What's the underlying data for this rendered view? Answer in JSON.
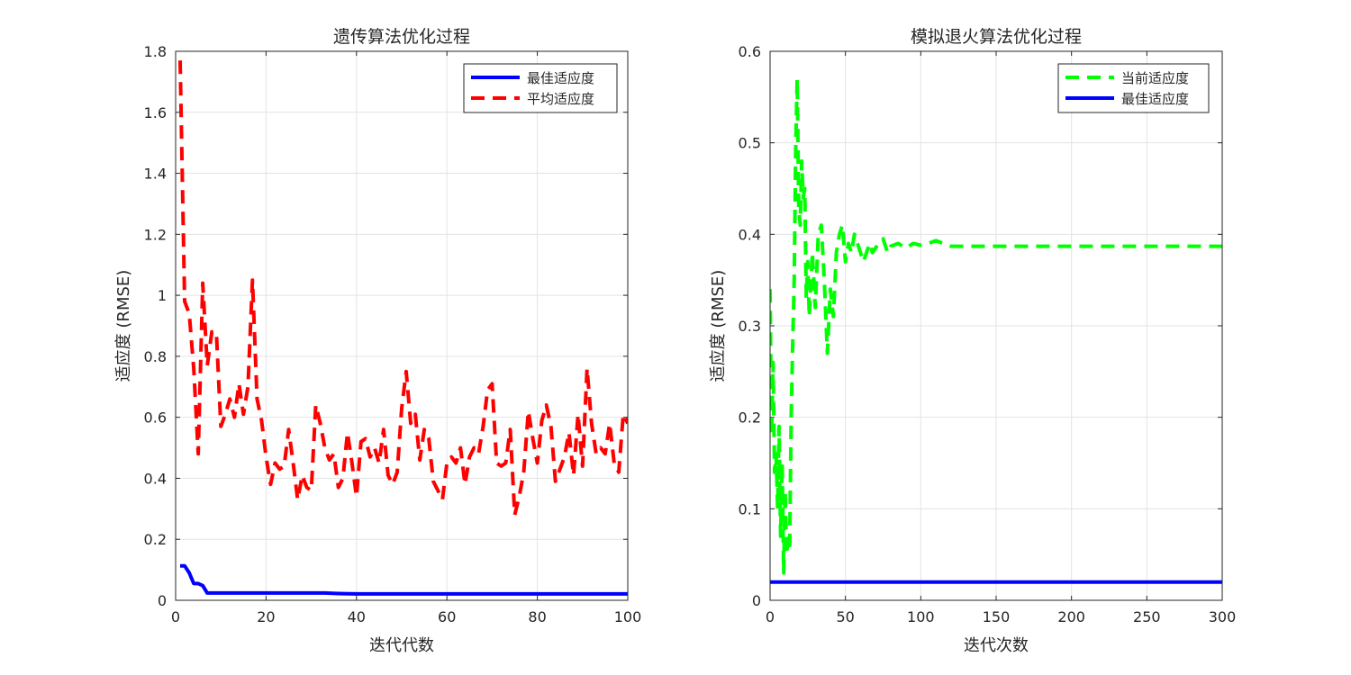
{
  "chart_data": [
    {
      "type": "line",
      "title": "遗传算法优化过程",
      "xlabel": "迭代代数",
      "ylabel": "适应度 (RMSE)",
      "xlim": [
        0,
        100
      ],
      "ylim": [
        0,
        1.8
      ],
      "xticks": [
        "0",
        "20",
        "40",
        "60",
        "80",
        "100"
      ],
      "yticks": [
        "0",
        "0.2",
        "0.4",
        "0.6",
        "0.8",
        "1",
        "1.2",
        "1.4",
        "1.6",
        "1.8"
      ],
      "grid": true,
      "legend_position": "top-right",
      "series": [
        {
          "name": "最佳适应度",
          "color": "#0000ff",
          "style": "solid",
          "x": [
            1,
            2,
            3,
            4,
            5,
            6,
            7,
            8,
            10,
            20,
            30,
            33,
            36,
            40,
            50,
            60,
            70,
            80,
            90,
            100
          ],
          "y": [
            0.113,
            0.113,
            0.09,
            0.055,
            0.055,
            0.048,
            0.024,
            0.024,
            0.024,
            0.024,
            0.024,
            0.024,
            0.022,
            0.021,
            0.021,
            0.021,
            0.021,
            0.021,
            0.021,
            0.021
          ]
        },
        {
          "name": "平均适应度",
          "color": "#ff0000",
          "style": "dashed",
          "x": [
            1,
            2,
            3,
            4,
            5,
            6,
            7,
            8,
            9,
            10,
            11,
            12,
            13,
            14,
            15,
            16,
            17,
            18,
            19,
            20,
            21,
            22,
            23,
            24,
            25,
            26,
            27,
            28,
            29,
            30,
            31,
            32,
            33,
            34,
            35,
            36,
            37,
            38,
            39,
            40,
            41,
            42,
            43,
            44,
            45,
            46,
            47,
            48,
            49,
            50,
            51,
            52,
            53,
            54,
            55,
            56,
            57,
            58,
            59,
            60,
            61,
            62,
            63,
            64,
            65,
            66,
            67,
            68,
            69,
            70,
            71,
            72,
            73,
            74,
            75,
            76,
            77,
            78,
            79,
            80,
            81,
            82,
            83,
            84,
            85,
            86,
            87,
            88,
            89,
            90,
            91,
            92,
            93,
            94,
            95,
            96,
            97,
            98,
            99,
            100
          ],
          "y": [
            1.77,
            0.98,
            0.94,
            0.76,
            0.48,
            1.04,
            0.77,
            0.88,
            0.88,
            0.57,
            0.61,
            0.66,
            0.6,
            0.71,
            0.61,
            0.7,
            1.05,
            0.66,
            0.59,
            0.47,
            0.38,
            0.45,
            0.43,
            0.44,
            0.56,
            0.45,
            0.33,
            0.41,
            0.37,
            0.36,
            0.64,
            0.58,
            0.5,
            0.46,
            0.48,
            0.37,
            0.4,
            0.55,
            0.45,
            0.34,
            0.52,
            0.53,
            0.47,
            0.5,
            0.45,
            0.56,
            0.41,
            0.38,
            0.42,
            0.63,
            0.75,
            0.58,
            0.61,
            0.46,
            0.56,
            0.53,
            0.39,
            0.36,
            0.33,
            0.45,
            0.47,
            0.45,
            0.5,
            0.38,
            0.47,
            0.5,
            0.48,
            0.57,
            0.69,
            0.71,
            0.45,
            0.44,
            0.45,
            0.56,
            0.28,
            0.34,
            0.42,
            0.62,
            0.53,
            0.45,
            0.59,
            0.64,
            0.57,
            0.39,
            0.43,
            0.47,
            0.55,
            0.41,
            0.61,
            0.44,
            0.76,
            0.58,
            0.48,
            0.5,
            0.48,
            0.58,
            0.45,
            0.42,
            0.61,
            0.58
          ]
        }
      ]
    },
    {
      "type": "line",
      "title": "模拟退火算法优化过程",
      "xlabel": "迭代次数",
      "ylabel": "适应度 (RMSE)",
      "xlim": [
        0,
        300
      ],
      "ylim": [
        0,
        0.6
      ],
      "xticks": [
        "0",
        "50",
        "100",
        "150",
        "200",
        "250",
        "300"
      ],
      "yticks": [
        "0",
        "0.1",
        "0.2",
        "0.3",
        "0.4",
        "0.5",
        "0.6"
      ],
      "grid": true,
      "legend_position": "top-right",
      "series": [
        {
          "name": "当前适应度",
          "color": "#00ff00",
          "style": "dashed",
          "x": [
            0,
            1,
            2,
            3,
            4,
            5,
            6,
            7,
            8,
            9,
            10,
            11,
            12,
            13,
            14,
            15,
            16,
            17,
            18,
            19,
            20,
            21,
            22,
            23,
            24,
            25,
            26,
            28,
            30,
            32,
            34,
            36,
            38,
            40,
            42,
            44,
            46,
            48,
            50,
            52,
            54,
            56,
            58,
            60,
            62,
            64,
            66,
            68,
            70,
            72,
            75,
            78,
            80,
            85,
            90,
            95,
            100,
            105,
            110,
            115,
            120,
            125,
            130,
            150,
            200,
            250,
            300
          ],
          "y": [
            0.34,
            0.18,
            0.26,
            0.14,
            0.16,
            0.1,
            0.19,
            0.07,
            0.15,
            0.03,
            0.12,
            0.05,
            0.07,
            0.06,
            0.2,
            0.28,
            0.35,
            0.49,
            0.57,
            0.43,
            0.41,
            0.48,
            0.44,
            0.45,
            0.33,
            0.37,
            0.31,
            0.38,
            0.32,
            0.4,
            0.41,
            0.35,
            0.27,
            0.34,
            0.31,
            0.38,
            0.4,
            0.41,
            0.37,
            0.39,
            0.38,
            0.4,
            0.39,
            0.38,
            0.37,
            0.38,
            0.39,
            0.38,
            0.385,
            0.39,
            0.395,
            0.38,
            0.387,
            0.39,
            0.385,
            0.39,
            0.388,
            0.39,
            0.393,
            0.39,
            0.387,
            0.387,
            0.387,
            0.387,
            0.387,
            0.387,
            0.387
          ]
        },
        {
          "name": "最佳适应度",
          "color": "#0000ff",
          "style": "solid",
          "x": [
            0,
            300
          ],
          "y": [
            0.02,
            0.02
          ]
        }
      ]
    }
  ]
}
